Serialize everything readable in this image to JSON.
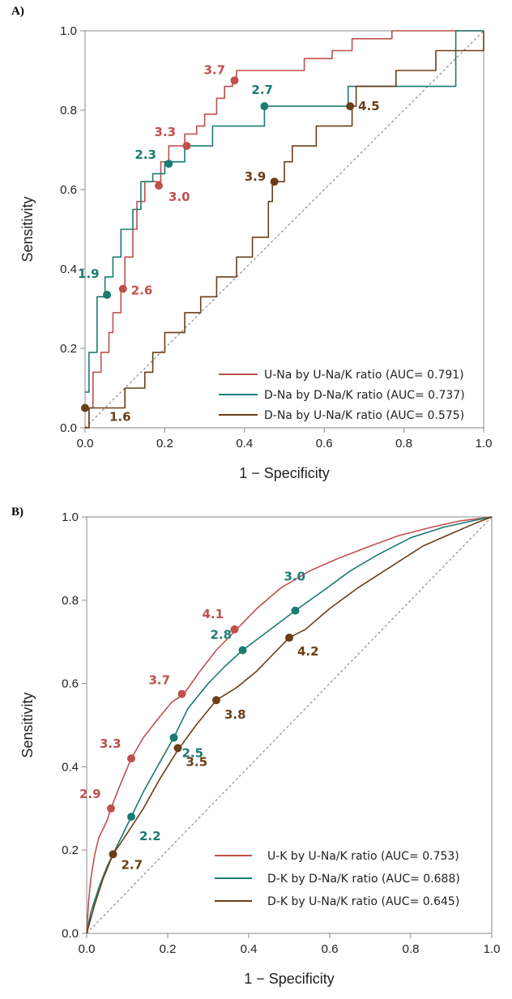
{
  "panels": [
    {
      "label": "A)",
      "xlabel": "1 − Specificity",
      "ylabel": "Sensitivity"
    },
    {
      "label": "B)",
      "xlabel": "1 − Specificity",
      "ylabel": "Sensitivity"
    }
  ],
  "chart_data": [
    {
      "type": "line",
      "title": "",
      "xlabel": "1 − Specificity",
      "ylabel": "Sensitivity",
      "xlim": [
        0,
        1
      ],
      "ylim": [
        0,
        1
      ],
      "xticks": [
        "0.0",
        "0.2",
        "0.4",
        "0.6",
        "0.8",
        "1.0"
      ],
      "yticks": [
        "0.0",
        "0.2",
        "0.4",
        "0.6",
        "0.8",
        "1.0"
      ],
      "grid": false,
      "diagonal_reference": true,
      "legend_position": "bottom-right",
      "series": [
        {
          "name": "U-Na by U-Na/K ratio (AUC= 0.791)",
          "color": "#c0504d",
          "x": [
            0,
            0.01,
            0.01,
            0.02,
            0.02,
            0.04,
            0.04,
            0.06,
            0.06,
            0.07,
            0.07,
            0.09,
            0.09,
            0.1,
            0.1,
            0.12,
            0.12,
            0.13,
            0.13,
            0.15,
            0.15,
            0.17,
            0.17,
            0.19,
            0.19,
            0.21,
            0.21,
            0.23,
            0.23,
            0.25,
            0.25,
            0.28,
            0.28,
            0.3,
            0.3,
            0.33,
            0.33,
            0.35,
            0.35,
            0.37,
            0.37,
            0.38,
            0.38,
            0.55,
            0.55,
            0.62,
            0.62,
            0.67,
            0.67,
            0.77,
            0.77,
            1.0
          ],
          "y": [
            0,
            0,
            0.05,
            0.05,
            0.14,
            0.14,
            0.19,
            0.19,
            0.24,
            0.24,
            0.29,
            0.29,
            0.35,
            0.35,
            0.43,
            0.43,
            0.5,
            0.5,
            0.57,
            0.57,
            0.62,
            0.62,
            0.62,
            0.62,
            0.67,
            0.67,
            0.71,
            0.71,
            0.71,
            0.71,
            0.74,
            0.74,
            0.76,
            0.76,
            0.79,
            0.79,
            0.83,
            0.83,
            0.86,
            0.86,
            0.88,
            0.88,
            0.9,
            0.9,
            0.93,
            0.93,
            0.95,
            0.95,
            0.98,
            0.98,
            1.0,
            1.0
          ]
        },
        {
          "name": "D-Na by D-Na/K ratio (AUC= 0.737)",
          "color": "#1a7b72",
          "x": [
            0,
            0.01,
            0.01,
            0.03,
            0.03,
            0.05,
            0.05,
            0.07,
            0.07,
            0.09,
            0.09,
            0.12,
            0.12,
            0.14,
            0.14,
            0.17,
            0.17,
            0.2,
            0.2,
            0.21,
            0.21,
            0.25,
            0.25,
            0.32,
            0.32,
            0.45,
            0.45,
            0.66,
            0.66,
            0.93,
            0.93,
            1.0
          ],
          "y": [
            0.09,
            0.09,
            0.19,
            0.19,
            0.33,
            0.33,
            0.38,
            0.38,
            0.43,
            0.43,
            0.5,
            0.5,
            0.55,
            0.55,
            0.62,
            0.62,
            0.64,
            0.64,
            0.67,
            0.67,
            0.67,
            0.67,
            0.71,
            0.71,
            0.76,
            0.76,
            0.81,
            0.81,
            0.86,
            0.86,
            1.0,
            1.0
          ]
        },
        {
          "name": "D-Na by U-Na/K ratio (AUC= 0.575)",
          "color": "#6b3e17",
          "x": [
            0,
            0.01,
            0.01,
            0.1,
            0.1,
            0.15,
            0.15,
            0.17,
            0.17,
            0.2,
            0.2,
            0.25,
            0.25,
            0.29,
            0.29,
            0.33,
            0.33,
            0.38,
            0.38,
            0.42,
            0.42,
            0.46,
            0.46,
            0.47,
            0.47,
            0.5,
            0.5,
            0.52,
            0.52,
            0.58,
            0.58,
            0.67,
            0.67,
            0.68,
            0.68,
            0.78,
            0.78,
            0.88,
            0.88,
            1.0,
            1.0
          ],
          "y": [
            0,
            0,
            0.05,
            0.05,
            0.1,
            0.1,
            0.14,
            0.14,
            0.19,
            0.19,
            0.24,
            0.24,
            0.29,
            0.29,
            0.33,
            0.33,
            0.38,
            0.38,
            0.43,
            0.43,
            0.48,
            0.48,
            0.57,
            0.57,
            0.62,
            0.62,
            0.67,
            0.67,
            0.71,
            0.71,
            0.76,
            0.76,
            0.81,
            0.81,
            0.86,
            0.86,
            0.9,
            0.9,
            0.95,
            0.95,
            1.0
          ]
        }
      ],
      "threshold_points": [
        {
          "series": 0,
          "label": "3.7",
          "x": 0.375,
          "y": 0.875,
          "color": "#c0504d"
        },
        {
          "series": 0,
          "label": "3.3",
          "x": 0.255,
          "y": 0.71,
          "color": "#c0504d"
        },
        {
          "series": 0,
          "label": "3.0",
          "x": 0.185,
          "y": 0.61,
          "color": "#c0504d"
        },
        {
          "series": 0,
          "label": "2.6",
          "x": 0.095,
          "y": 0.35,
          "color": "#c0504d"
        },
        {
          "series": 1,
          "label": "2.7",
          "x": 0.45,
          "y": 0.81,
          "color": "#1a7b72"
        },
        {
          "series": 1,
          "label": "2.3",
          "x": 0.21,
          "y": 0.665,
          "color": "#1a7b72"
        },
        {
          "series": 1,
          "label": "1.9",
          "x": 0.055,
          "y": 0.335,
          "color": "#1a7b72"
        },
        {
          "series": 2,
          "label": "4.5",
          "x": 0.665,
          "y": 0.81,
          "color": "#6b3e17"
        },
        {
          "series": 2,
          "label": "3.9",
          "x": 0.475,
          "y": 0.62,
          "color": "#6b3e17"
        },
        {
          "series": 2,
          "label": "1.6",
          "x": 0.0,
          "y": 0.05,
          "color": "#6b3e17"
        }
      ]
    },
    {
      "type": "line",
      "title": "",
      "xlabel": "1 − Specificity",
      "ylabel": "Sensitivity",
      "xlim": [
        0,
        1
      ],
      "ylim": [
        0,
        1
      ],
      "xticks": [
        "0.0",
        "0.2",
        "0.4",
        "0.6",
        "0.8",
        "1.0"
      ],
      "yticks": [
        "0.0",
        "0.2",
        "0.4",
        "0.6",
        "0.8",
        "1.0"
      ],
      "grid": false,
      "diagonal_reference": true,
      "legend_position": "bottom-right",
      "series": [
        {
          "name": "U-K by U-Na/K ratio (AUC= 0.753)",
          "color": "#c0504d",
          "x": [
            0,
            0.005,
            0.01,
            0.02,
            0.03,
            0.05,
            0.06,
            0.08,
            0.11,
            0.14,
            0.18,
            0.21,
            0.24,
            0.28,
            0.32,
            0.37,
            0.42,
            0.48,
            0.55,
            0.62,
            0.7,
            0.77,
            0.85,
            0.92,
            1.0
          ],
          "y": [
            0,
            0.08,
            0.13,
            0.19,
            0.23,
            0.27,
            0.3,
            0.35,
            0.42,
            0.47,
            0.52,
            0.555,
            0.575,
            0.63,
            0.68,
            0.73,
            0.78,
            0.83,
            0.87,
            0.9,
            0.93,
            0.955,
            0.975,
            0.99,
            1.0
          ]
        },
        {
          "name": "D-K by D-Na/K ratio (AUC= 0.688)",
          "color": "#1a7b72",
          "x": [
            0,
            0.01,
            0.03,
            0.05,
            0.08,
            0.11,
            0.14,
            0.18,
            0.215,
            0.25,
            0.3,
            0.34,
            0.385,
            0.44,
            0.515,
            0.58,
            0.65,
            0.72,
            0.8,
            0.88,
            0.95,
            1.0
          ],
          "y": [
            0,
            0.05,
            0.11,
            0.16,
            0.22,
            0.28,
            0.34,
            0.41,
            0.47,
            0.54,
            0.6,
            0.64,
            0.68,
            0.72,
            0.775,
            0.82,
            0.87,
            0.91,
            0.95,
            0.975,
            0.99,
            1.0
          ]
        },
        {
          "name": "D-K by U-Na/K ratio (AUC= 0.645)",
          "color": "#6b3e17",
          "x": [
            0,
            0.02,
            0.04,
            0.065,
            0.1,
            0.14,
            0.18,
            0.225,
            0.27,
            0.32,
            0.37,
            0.42,
            0.47,
            0.5,
            0.54,
            0.6,
            0.67,
            0.75,
            0.83,
            0.9,
            0.96,
            1.0
          ],
          "y": [
            0,
            0.07,
            0.13,
            0.19,
            0.24,
            0.3,
            0.37,
            0.44,
            0.5,
            0.56,
            0.59,
            0.63,
            0.68,
            0.71,
            0.73,
            0.78,
            0.83,
            0.88,
            0.93,
            0.96,
            0.985,
            1.0
          ]
        }
      ],
      "threshold_points": [
        {
          "series": 0,
          "label": "4.1",
          "x": 0.365,
          "y": 0.73,
          "color": "#c0504d"
        },
        {
          "series": 0,
          "label": "3.7",
          "x": 0.235,
          "y": 0.575,
          "color": "#c0504d"
        },
        {
          "series": 0,
          "label": "3.3",
          "x": 0.11,
          "y": 0.42,
          "color": "#c0504d"
        },
        {
          "series": 0,
          "label": "2.9",
          "x": 0.06,
          "y": 0.3,
          "color": "#c0504d"
        },
        {
          "series": 1,
          "label": "3.0",
          "x": 0.515,
          "y": 0.775,
          "color": "#1a7b72"
        },
        {
          "series": 1,
          "label": "2.8",
          "x": 0.385,
          "y": 0.68,
          "color": "#1a7b72"
        },
        {
          "series": 1,
          "label": "2.5",
          "x": 0.215,
          "y": 0.47,
          "color": "#1a7b72"
        },
        {
          "series": 1,
          "label": "2.2",
          "x": 0.11,
          "y": 0.28,
          "color": "#1a7b72"
        },
        {
          "series": 2,
          "label": "4.2",
          "x": 0.5,
          "y": 0.71,
          "color": "#6b3e17"
        },
        {
          "series": 2,
          "label": "3.8",
          "x": 0.32,
          "y": 0.56,
          "color": "#6b3e17"
        },
        {
          "series": 2,
          "label": "3.5",
          "x": 0.225,
          "y": 0.445,
          "color": "#6b3e17"
        },
        {
          "series": 2,
          "label": "2.7",
          "x": 0.065,
          "y": 0.19,
          "color": "#6b3e17"
        }
      ]
    }
  ]
}
